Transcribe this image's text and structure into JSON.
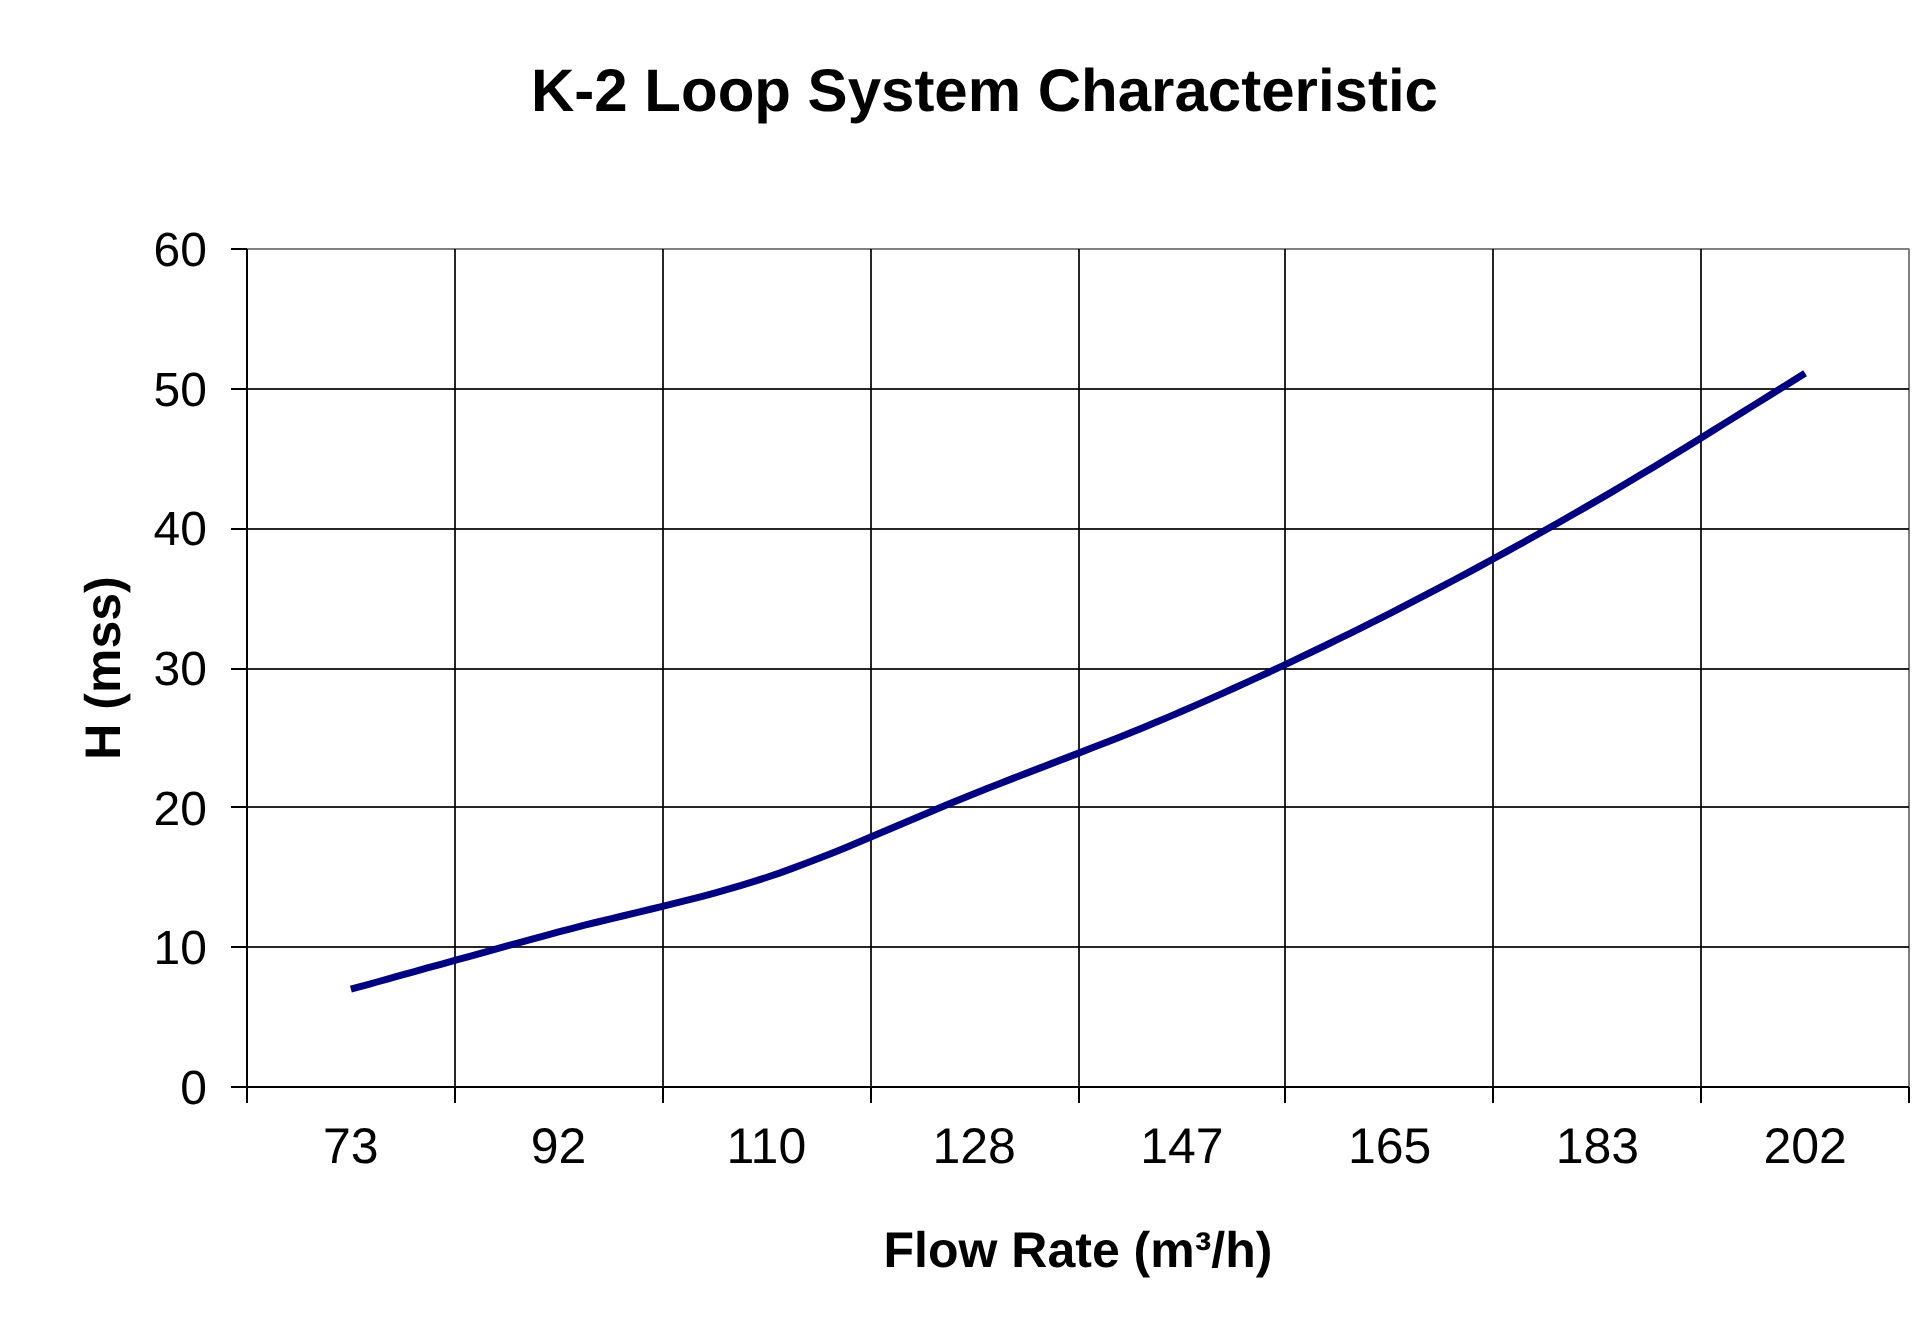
{
  "chart_data": {
    "type": "line",
    "title": "K-2 Loop System Characteristic",
    "xlabel": "Flow Rate (m³/h)",
    "ylabel": "H (mss)",
    "categories": [
      "73",
      "92",
      "110",
      "128",
      "147",
      "165",
      "183",
      "202"
    ],
    "series": [
      {
        "color": "#000080",
        "values": [
          7.0,
          11.1,
          15.0,
          21.0,
          26.9,
          33.9,
          42.0,
          51.1
        ]
      }
    ],
    "ylim": [
      0,
      60
    ],
    "yticks": [
      0,
      10,
      20,
      30,
      40,
      50,
      60
    ],
    "grid": true,
    "line_style": "solid"
  }
}
